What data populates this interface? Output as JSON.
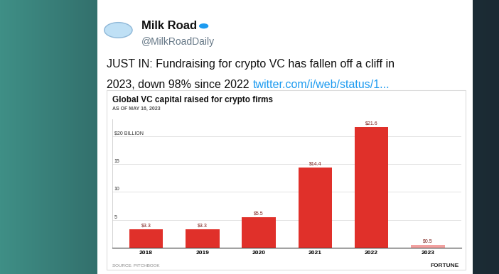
{
  "tweet": {
    "name": "Milk Road",
    "handle": "@MilkRoadDaily",
    "text_lines": [
      "JUST IN: Fundraising for crypto VC has fallen off a cliff in",
      "2023, down 98% since 2022"
    ],
    "link": "twitter.com/i/web/status/1..."
  },
  "chart_data": {
    "type": "bar",
    "title": "Global VC capital raised for crypto firms",
    "subtitle": "AS OF MAY 16, 2023",
    "source": "SOURCE: PITCHBOOK",
    "brand": "FORTUNE",
    "categories": [
      "2018",
      "2019",
      "2020",
      "2021",
      "2022",
      "2023"
    ],
    "values": [
      3.3,
      3.3,
      5.5,
      14.4,
      21.6,
      0.5
    ],
    "value_labels": [
      "$3.3",
      "$3.3",
      "$5.5",
      "$14.4",
      "$21.6",
      "$0.5"
    ],
    "data_labels": true,
    "colors": [
      "#e0302a",
      "#e0302a",
      "#e0302a",
      "#e0302a",
      "#e0302a",
      "#f2a1a0"
    ],
    "ylim": [
      0,
      23
    ],
    "yticks": [
      5,
      10,
      15,
      {
        "value": 20,
        "label": "$20 BILLION"
      }
    ],
    "grid": true
  }
}
